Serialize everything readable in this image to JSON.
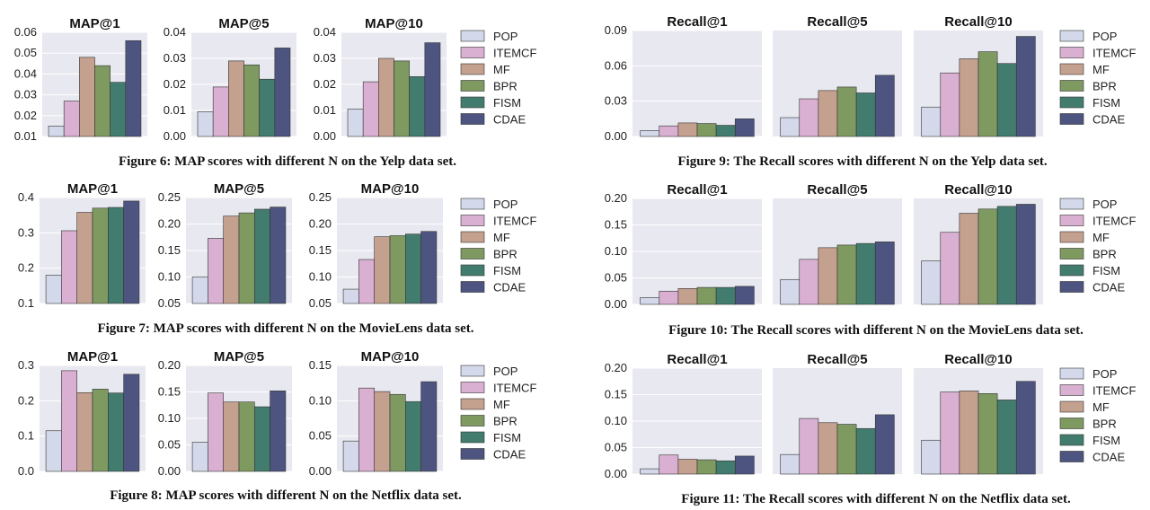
{
  "legend": [
    "POP",
    "ITEMCF",
    "MF",
    "BPR",
    "FISM",
    "CDAE"
  ],
  "colors": {
    "POP": "#d3d9ea",
    "ITEMCF": "#d9b0d1",
    "MF": "#c4a08f",
    "BPR": "#7e9a61",
    "FISM": "#427c6e",
    "CDAE": "#4d5480",
    "panel_bg": "#e8e8f0"
  },
  "figures": [
    {
      "caption": "Figure 6: MAP scores with different N on the Yelp data set.",
      "panels": [
        {
          "title": "MAP@1",
          "ylim": [
            0.01,
            0.06
          ],
          "ticks": [
            "0.01",
            "0.02",
            "0.03",
            "0.04",
            "0.05",
            "0.06"
          ],
          "values": [
            0.015,
            0.027,
            0.048,
            0.044,
            0.036,
            0.056
          ]
        },
        {
          "title": "MAP@5",
          "ylim": [
            0.0,
            0.04
          ],
          "ticks": [
            "0.00",
            "0.01",
            "0.02",
            "0.03",
            "0.04"
          ],
          "values": [
            0.0095,
            0.019,
            0.029,
            0.0275,
            0.022,
            0.034
          ]
        },
        {
          "title": "MAP@10",
          "ylim": [
            0.0,
            0.04
          ],
          "ticks": [
            "0.00",
            "0.01",
            "0.02",
            "0.03",
            "0.04"
          ],
          "values": [
            0.0105,
            0.021,
            0.03,
            0.029,
            0.023,
            0.036
          ]
        }
      ]
    },
    {
      "caption": "Figure 7: MAP scores with different N on the MovieLens data set.",
      "panels": [
        {
          "title": "MAP@1",
          "ylim": [
            0.1,
            0.4
          ],
          "ticks": [
            "0.1",
            "0.2",
            "0.3",
            "0.4"
          ],
          "values": [
            0.18,
            0.306,
            0.358,
            0.37,
            0.372,
            0.39
          ]
        },
        {
          "title": "MAP@5",
          "ylim": [
            0.05,
            0.25
          ],
          "ticks": [
            "0.05",
            "0.10",
            "0.15",
            "0.20",
            "0.25"
          ],
          "values": [
            0.1,
            0.173,
            0.215,
            0.221,
            0.228,
            0.232
          ]
        },
        {
          "title": "MAP@10",
          "ylim": [
            0.05,
            0.25
          ],
          "ticks": [
            "0.05",
            "0.10",
            "0.15",
            "0.20",
            "0.25"
          ],
          "values": [
            0.077,
            0.133,
            0.176,
            0.178,
            0.181,
            0.186
          ]
        }
      ]
    },
    {
      "caption": "Figure 8: MAP scores with different N on the Netflix data set.",
      "panels": [
        {
          "title": "MAP@1",
          "ylim": [
            0.0,
            0.3
          ],
          "ticks": [
            "0.0",
            "0.1",
            "0.2",
            "0.3"
          ],
          "values": [
            0.115,
            0.285,
            0.223,
            0.233,
            0.222,
            0.275
          ]
        },
        {
          "title": "MAP@5",
          "ylim": [
            0.0,
            0.2
          ],
          "ticks": [
            "0.00",
            "0.05",
            "0.10",
            "0.15",
            "0.20"
          ],
          "values": [
            0.055,
            0.148,
            0.131,
            0.131,
            0.122,
            0.152
          ]
        },
        {
          "title": "MAP@10",
          "ylim": [
            0.0,
            0.15
          ],
          "ticks": [
            "0.00",
            "0.05",
            "0.10",
            "0.15"
          ],
          "values": [
            0.043,
            0.118,
            0.113,
            0.109,
            0.099,
            0.127
          ]
        }
      ]
    },
    {
      "caption": "Figure 9: The Recall scores with different N on the Yelp data set.",
      "panels": [
        {
          "title": "Recall@1",
          "ylim": [
            0.0,
            0.09
          ],
          "ticks": [
            "0.00",
            "0.03",
            "0.06",
            "0.09"
          ],
          "values": [
            0.005,
            0.009,
            0.0115,
            0.011,
            0.0095,
            0.015
          ]
        },
        {
          "title": "Recall@5",
          "ylim": [
            0.0,
            0.09
          ],
          "ticks": [],
          "values": [
            0.016,
            0.032,
            0.039,
            0.042,
            0.037,
            0.052
          ]
        },
        {
          "title": "Recall@10",
          "ylim": [
            0.0,
            0.09
          ],
          "ticks": [],
          "values": [
            0.025,
            0.054,
            0.066,
            0.072,
            0.062,
            0.085
          ]
        }
      ]
    },
    {
      "caption": "Figure 10: The Recall scores with different N on the MovieLens data set.",
      "panels": [
        {
          "title": "Recall@1",
          "ylim": [
            0.0,
            0.2
          ],
          "ticks": [
            "0.00",
            "0.05",
            "0.10",
            "0.15",
            "0.20"
          ],
          "values": [
            0.013,
            0.025,
            0.03,
            0.032,
            0.032,
            0.034
          ]
        },
        {
          "title": "Recall@5",
          "ylim": [
            0.0,
            0.2
          ],
          "ticks": [],
          "values": [
            0.047,
            0.085,
            0.107,
            0.112,
            0.115,
            0.118
          ]
        },
        {
          "title": "Recall@10",
          "ylim": [
            0.0,
            0.2
          ],
          "ticks": [],
          "values": [
            0.082,
            0.136,
            0.172,
            0.18,
            0.185,
            0.189
          ]
        }
      ]
    },
    {
      "caption": "Figure 11: The Recall scores with different N on the Netflix data set.",
      "panels": [
        {
          "title": "Recall@1",
          "ylim": [
            0.0,
            0.2
          ],
          "ticks": [
            "0.00",
            "0.05",
            "0.10",
            "0.15",
            "0.20"
          ],
          "values": [
            0.01,
            0.036,
            0.028,
            0.027,
            0.025,
            0.034
          ]
        },
        {
          "title": "Recall@5",
          "ylim": [
            0.0,
            0.2
          ],
          "ticks": [],
          "values": [
            0.037,
            0.105,
            0.097,
            0.094,
            0.086,
            0.112
          ]
        },
        {
          "title": "Recall@10",
          "ylim": [
            0.0,
            0.2
          ],
          "ticks": [],
          "values": [
            0.064,
            0.155,
            0.157,
            0.152,
            0.14,
            0.175
          ]
        }
      ]
    }
  ],
  "chart_data": [
    {
      "type": "bar",
      "title": "MAP@1",
      "categories": [
        "POP",
        "ITEMCF",
        "MF",
        "BPR",
        "FISM",
        "CDAE"
      ],
      "values": [
        0.015,
        0.027,
        0.048,
        0.044,
        0.036,
        0.056
      ],
      "ylim": [
        0.01,
        0.06
      ]
    },
    {
      "type": "bar",
      "title": "MAP@5",
      "categories": [
        "POP",
        "ITEMCF",
        "MF",
        "BPR",
        "FISM",
        "CDAE"
      ],
      "values": [
        0.0095,
        0.019,
        0.029,
        0.0275,
        0.022,
        0.034
      ],
      "ylim": [
        0.0,
        0.04
      ]
    },
    {
      "type": "bar",
      "title": "MAP@10",
      "categories": [
        "POP",
        "ITEMCF",
        "MF",
        "BPR",
        "FISM",
        "CDAE"
      ],
      "values": [
        0.0105,
        0.021,
        0.03,
        0.029,
        0.023,
        0.036
      ],
      "ylim": [
        0.0,
        0.04
      ]
    },
    {
      "type": "bar",
      "title": "MAP@1",
      "categories": [
        "POP",
        "ITEMCF",
        "MF",
        "BPR",
        "FISM",
        "CDAE"
      ],
      "values": [
        0.18,
        0.306,
        0.358,
        0.37,
        0.372,
        0.39
      ],
      "ylim": [
        0.1,
        0.4
      ]
    },
    {
      "type": "bar",
      "title": "MAP@5",
      "categories": [
        "POP",
        "ITEMCF",
        "MF",
        "BPR",
        "FISM",
        "CDAE"
      ],
      "values": [
        0.1,
        0.173,
        0.215,
        0.221,
        0.228,
        0.232
      ],
      "ylim": [
        0.05,
        0.25
      ]
    },
    {
      "type": "bar",
      "title": "MAP@10",
      "categories": [
        "POP",
        "ITEMCF",
        "MF",
        "BPR",
        "FISM",
        "CDAE"
      ],
      "values": [
        0.077,
        0.133,
        0.176,
        0.178,
        0.181,
        0.186
      ],
      "ylim": [
        0.05,
        0.25
      ]
    },
    {
      "type": "bar",
      "title": "MAP@1",
      "categories": [
        "POP",
        "ITEMCF",
        "MF",
        "BPR",
        "FISM",
        "CDAE"
      ],
      "values": [
        0.115,
        0.285,
        0.223,
        0.233,
        0.222,
        0.275
      ],
      "ylim": [
        0.0,
        0.3
      ]
    },
    {
      "type": "bar",
      "title": "MAP@5",
      "categories": [
        "POP",
        "ITEMCF",
        "MF",
        "BPR",
        "FISM",
        "CDAE"
      ],
      "values": [
        0.055,
        0.148,
        0.131,
        0.131,
        0.122,
        0.152
      ],
      "ylim": [
        0.0,
        0.2
      ]
    },
    {
      "type": "bar",
      "title": "MAP@10",
      "categories": [
        "POP",
        "ITEMCF",
        "MF",
        "BPR",
        "FISM",
        "CDAE"
      ],
      "values": [
        0.043,
        0.118,
        0.113,
        0.109,
        0.099,
        0.127
      ],
      "ylim": [
        0.0,
        0.15
      ]
    },
    {
      "type": "bar",
      "title": "Recall@1",
      "categories": [
        "POP",
        "ITEMCF",
        "MF",
        "BPR",
        "FISM",
        "CDAE"
      ],
      "values": [
        0.005,
        0.009,
        0.0115,
        0.011,
        0.0095,
        0.015
      ],
      "ylim": [
        0.0,
        0.09
      ]
    },
    {
      "type": "bar",
      "title": "Recall@5",
      "categories": [
        "POP",
        "ITEMCF",
        "MF",
        "BPR",
        "FISM",
        "CDAE"
      ],
      "values": [
        0.016,
        0.032,
        0.039,
        0.042,
        0.037,
        0.052
      ],
      "ylim": [
        0.0,
        0.09
      ]
    },
    {
      "type": "bar",
      "title": "Recall@10",
      "categories": [
        "POP",
        "ITEMCF",
        "MF",
        "BPR",
        "FISM",
        "CDAE"
      ],
      "values": [
        0.025,
        0.054,
        0.066,
        0.072,
        0.062,
        0.085
      ],
      "ylim": [
        0.0,
        0.09
      ]
    },
    {
      "type": "bar",
      "title": "Recall@1",
      "categories": [
        "POP",
        "ITEMCF",
        "MF",
        "BPR",
        "FISM",
        "CDAE"
      ],
      "values": [
        0.013,
        0.025,
        0.03,
        0.032,
        0.032,
        0.034
      ],
      "ylim": [
        0.0,
        0.2
      ]
    },
    {
      "type": "bar",
      "title": "Recall@5",
      "categories": [
        "POP",
        "ITEMCF",
        "MF",
        "BPR",
        "FISM",
        "CDAE"
      ],
      "values": [
        0.047,
        0.085,
        0.107,
        0.112,
        0.115,
        0.118
      ],
      "ylim": [
        0.0,
        0.2
      ]
    },
    {
      "type": "bar",
      "title": "Recall@10",
      "categories": [
        "POP",
        "ITEMCF",
        "MF",
        "BPR",
        "FISM",
        "CDAE"
      ],
      "values": [
        0.082,
        0.136,
        0.172,
        0.18,
        0.185,
        0.189
      ],
      "ylim": [
        0.0,
        0.2
      ]
    },
    {
      "type": "bar",
      "title": "Recall@1",
      "categories": [
        "POP",
        "ITEMCF",
        "MF",
        "BPR",
        "FISM",
        "CDAE"
      ],
      "values": [
        0.01,
        0.036,
        0.028,
        0.027,
        0.025,
        0.034
      ],
      "ylim": [
        0.0,
        0.2
      ]
    },
    {
      "type": "bar",
      "title": "Recall@5",
      "categories": [
        "POP",
        "ITEMCF",
        "MF",
        "BPR",
        "FISM",
        "CDAE"
      ],
      "values": [
        0.037,
        0.105,
        0.097,
        0.094,
        0.086,
        0.112
      ],
      "ylim": [
        0.0,
        0.2
      ]
    },
    {
      "type": "bar",
      "title": "Recall@10",
      "categories": [
        "POP",
        "ITEMCF",
        "MF",
        "BPR",
        "FISM",
        "CDAE"
      ],
      "values": [
        0.064,
        0.155,
        0.157,
        0.152,
        0.14,
        0.175
      ],
      "ylim": [
        0.0,
        0.2
      ]
    }
  ]
}
